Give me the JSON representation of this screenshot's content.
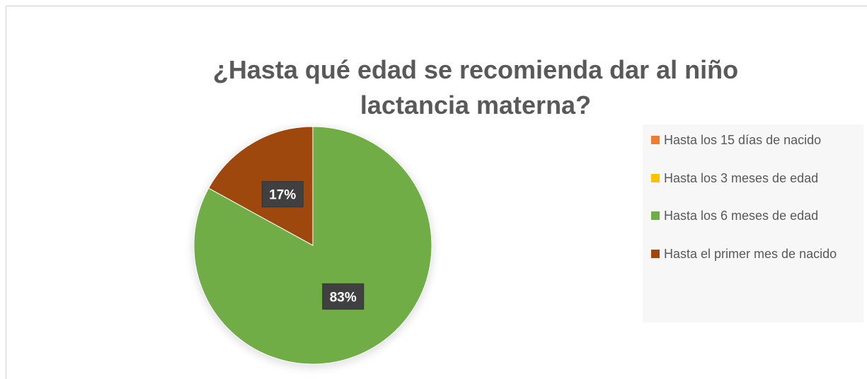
{
  "chart_data": {
    "type": "pie",
    "title": "¿Hasta qué edad se recomienda dar al niño lactancia materna?",
    "categories": [
      "Hasta los 15 días de nacido",
      "Hasta los 3 meses de edad",
      "Hasta los 6 meses de edad",
      "Hasta el primer mes de nacido"
    ],
    "values": [
      0,
      0,
      83,
      17
    ],
    "value_labels": [
      null,
      null,
      "83%",
      "17%"
    ],
    "colors": [
      "#ED7D31",
      "#FFC000",
      "#70AD47",
      "#9E480E"
    ],
    "legend": "right"
  }
}
